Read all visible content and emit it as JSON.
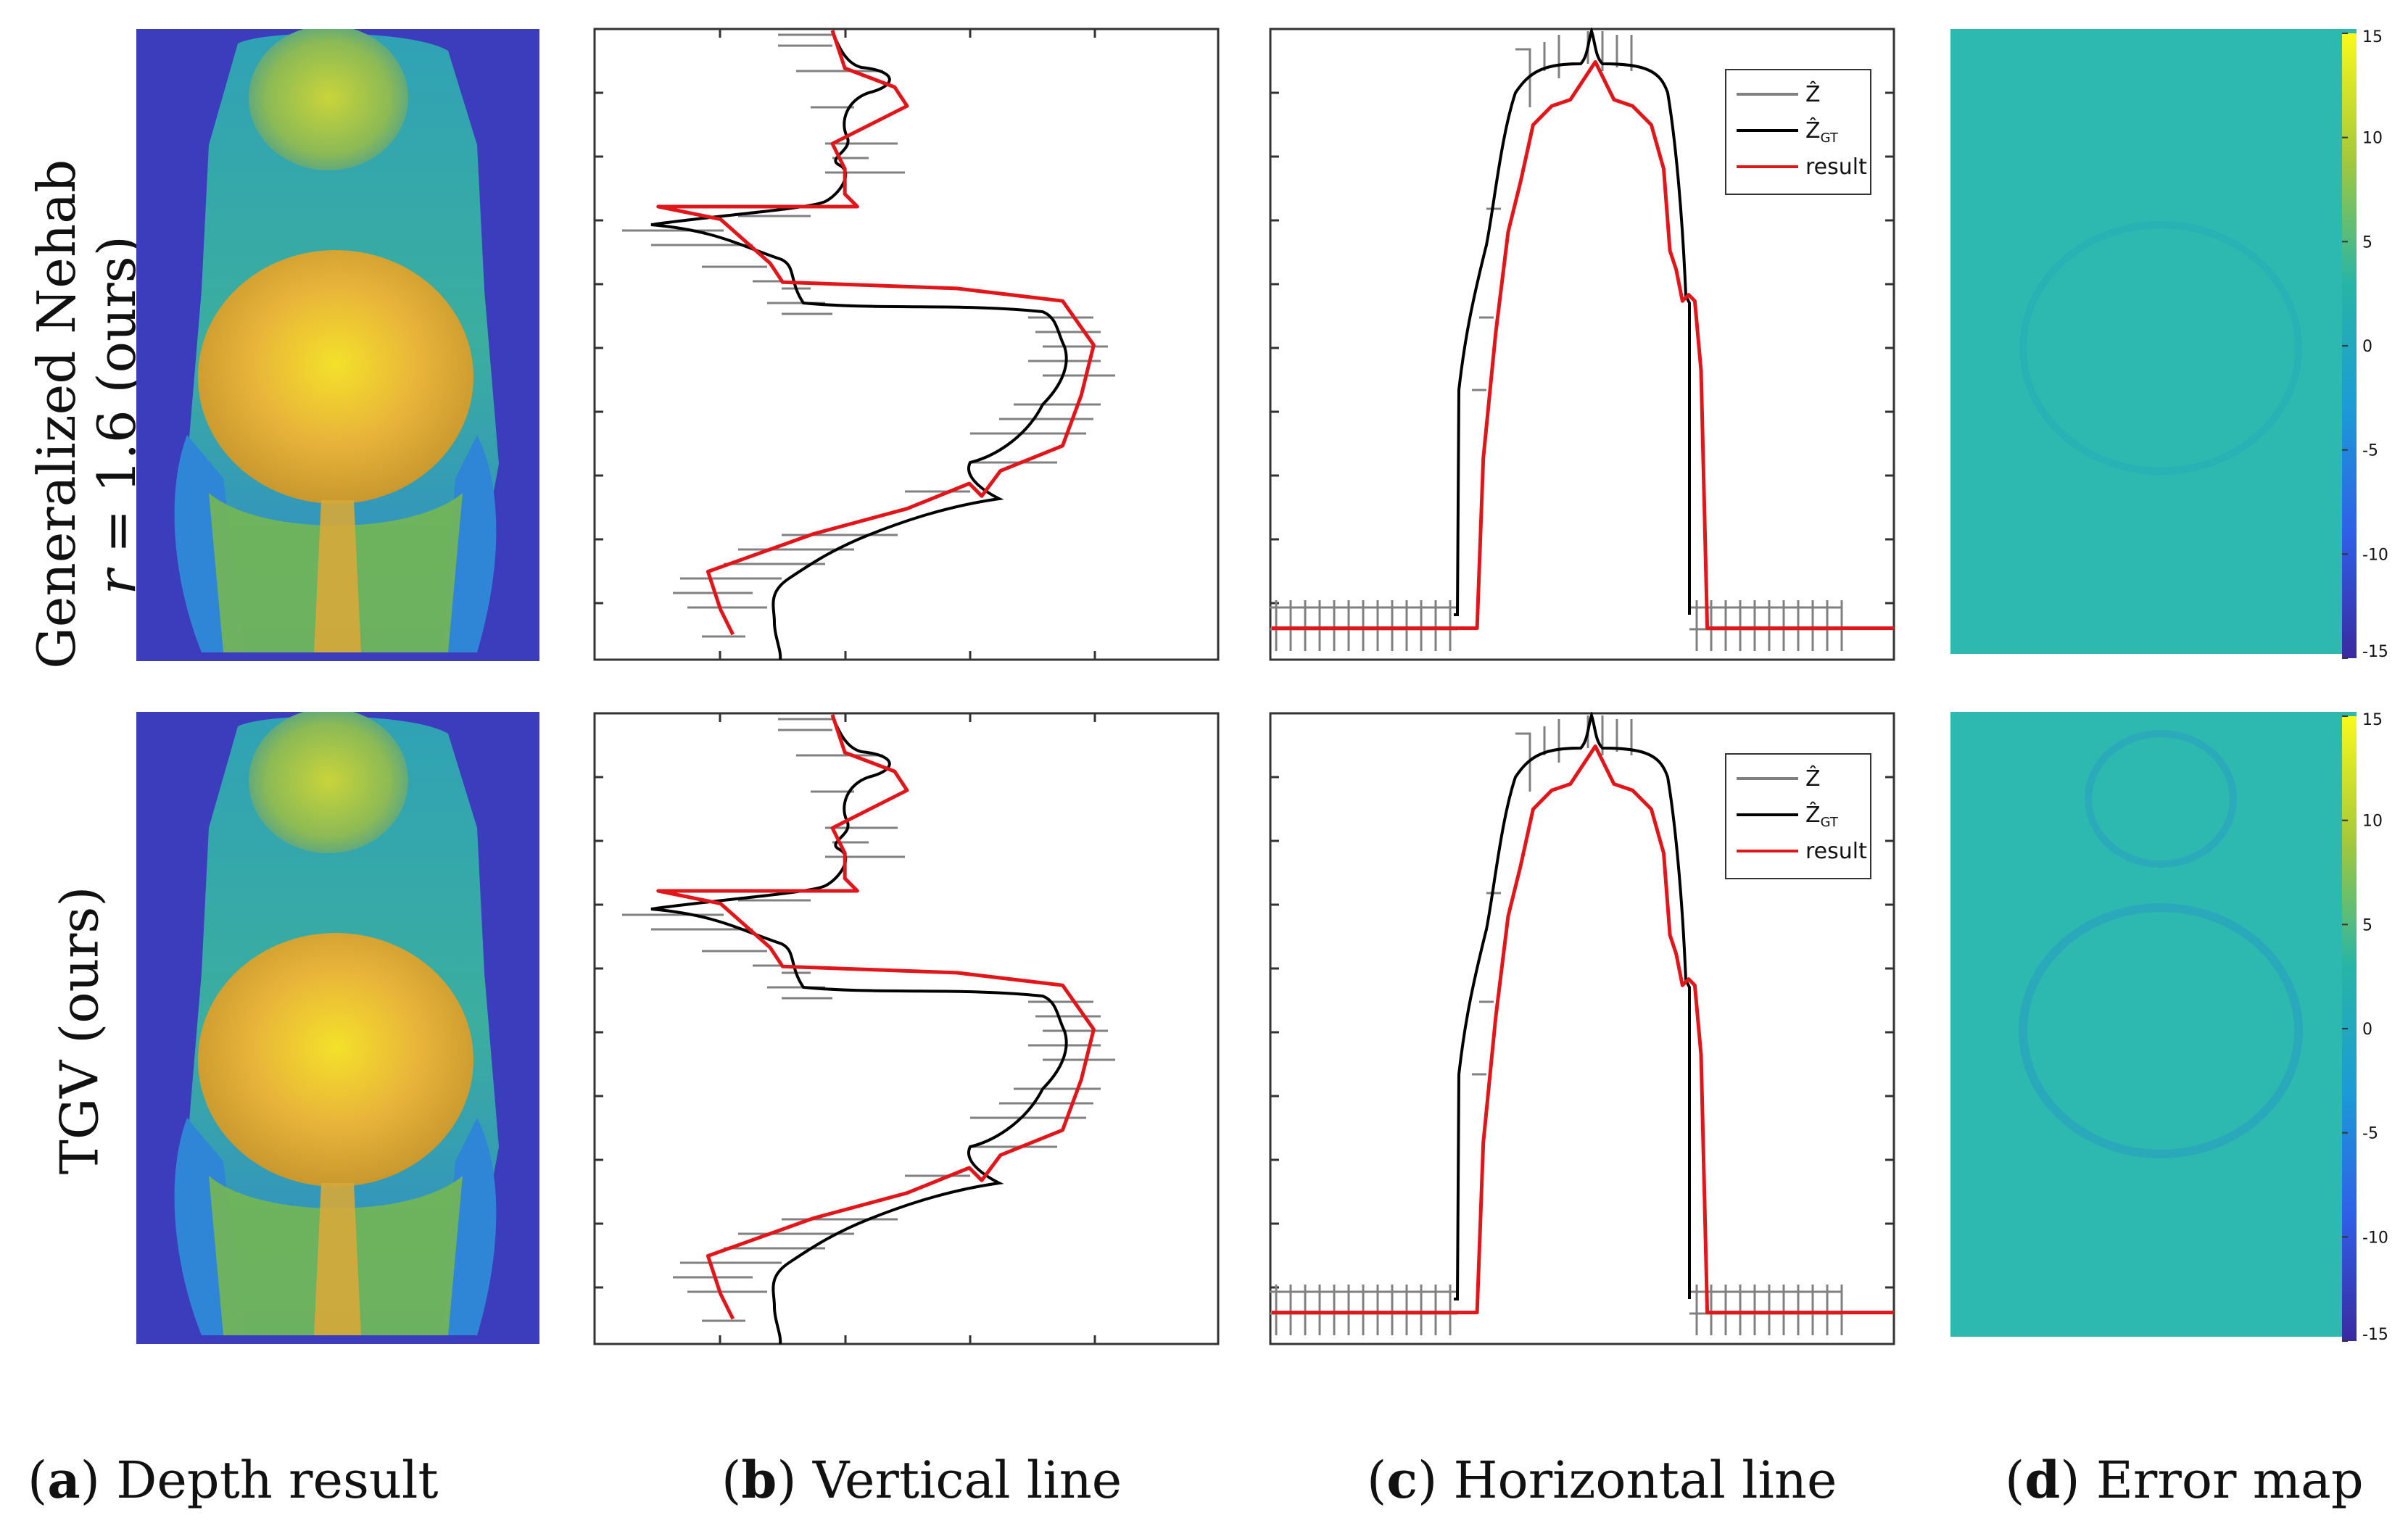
{
  "rows": [
    {
      "label_line1": "Generalized Nehab",
      "label_line2": "r = 1.6 (ours)"
    },
    {
      "label_line1": "TGV (ours)",
      "label_line2": ""
    }
  ],
  "captions": [
    {
      "letter": "a",
      "text": "Depth result"
    },
    {
      "letter": "b",
      "text": "Vertical line"
    },
    {
      "letter": "c",
      "text": "Horizontal line"
    },
    {
      "letter": "d",
      "text": "Error map"
    }
  ],
  "legend": {
    "item1": "Ẑ",
    "item2": "Ẑ",
    "item2_sub": "GT",
    "item3": "result"
  },
  "colors": {
    "noisy": "#808080",
    "gt": "#000000",
    "result": "#e0161b",
    "depth_bg": "#3b3dbd",
    "error_bg": "#2db8b0"
  },
  "chart_data": [
    {
      "type": "line",
      "title": "Vertical line",
      "series": [
        {
          "name": "Ẑ",
          "color": "#808080"
        },
        {
          "name": "Ẑ_GT",
          "color": "#000000"
        },
        {
          "name": "result",
          "color": "#e0161b",
          "x": [
            0.38,
            0.4,
            0.48,
            0.5,
            0.38,
            0.4,
            0.4,
            0.42,
            0.1,
            0.2,
            0.28,
            0.3,
            0.58,
            0.75,
            0.8,
            0.78,
            0.75,
            0.65,
            0.62,
            0.6,
            0.5,
            0.35,
            0.18,
            0.2,
            0.22
          ],
          "y": [
            0.0,
            0.06,
            0.09,
            0.12,
            0.18,
            0.22,
            0.26,
            0.28,
            0.28,
            0.3,
            0.37,
            0.4,
            0.41,
            0.43,
            0.5,
            0.58,
            0.66,
            0.7,
            0.74,
            0.72,
            0.76,
            0.8,
            0.86,
            0.92,
            0.96
          ]
        }
      ]
    },
    {
      "type": "line",
      "title": "Horizontal line",
      "legend": [
        "Ẑ",
        "Ẑ_GT",
        "result"
      ],
      "series": [
        {
          "name": "result",
          "color": "#e0161b",
          "x": [
            0.0,
            0.32,
            0.33,
            0.34,
            0.35,
            0.36,
            0.38,
            0.4,
            0.42,
            0.45,
            0.48,
            0.52,
            0.55,
            0.58,
            0.61,
            0.63,
            0.64,
            0.65,
            0.66,
            0.67,
            0.68,
            0.69,
            0.7,
            0.71,
            0.72,
            1.0
          ],
          "y": [
            0.05,
            0.05,
            0.05,
            0.32,
            0.42,
            0.52,
            0.68,
            0.76,
            0.85,
            0.88,
            0.89,
            0.95,
            0.89,
            0.88,
            0.85,
            0.78,
            0.65,
            0.62,
            0.57,
            0.58,
            0.57,
            0.46,
            0.05,
            0.05,
            0.05,
            0.05
          ]
        }
      ]
    },
    {
      "type": "heatmap",
      "title": "Error map",
      "colorbar": {
        "min": -15,
        "max": 15,
        "ticks": [
          "15",
          "10",
          "5",
          "0",
          "-5",
          "-10",
          "-15"
        ]
      }
    }
  ]
}
